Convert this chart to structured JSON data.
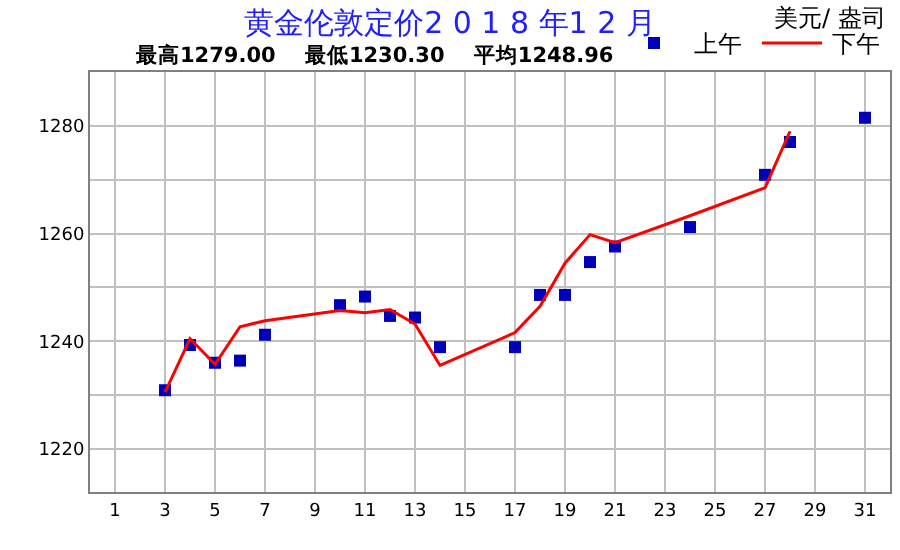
{
  "chart_data": {
    "type": "line",
    "title": "黄金伦敦定价2 0 1 8 年1 2 月",
    "subtitle": "最高1279.00    最低1230.30    平均1248.96",
    "ylabel": "美元/ 盎司",
    "xlim": [
      0,
      32
    ],
    "xticks": [
      1,
      3,
      5,
      7,
      9,
      11,
      13,
      15,
      17,
      19,
      21,
      23,
      25,
      27,
      29,
      31
    ],
    "ylim": [
      1212,
      1290
    ],
    "yticks": [
      1220,
      {
        "value": 1230,
        "label": null
      },
      1240,
      {
        "value": 1250,
        "label": null
      },
      1260,
      {
        "value": 1270,
        "label": null
      },
      1280
    ],
    "grid": true,
    "legend": "top right",
    "series": [
      {
        "name": "上午",
        "type": "scatter",
        "marker": "square",
        "color": "#0000bb",
        "x": [
          3,
          4,
          5,
          6,
          7,
          10,
          11,
          12,
          13,
          14,
          17,
          18,
          19,
          20,
          21,
          24,
          27,
          28,
          31
        ],
        "values": [
          1230.9,
          1239.3,
          1236.0,
          1236.4,
          1241.2,
          1246.7,
          1248.3,
          1244.7,
          1244.4,
          1238.9,
          1238.9,
          1248.6,
          1248.6,
          1254.7,
          1257.6,
          1261.2,
          1270.9,
          1277.0,
          1281.5
        ]
      },
      {
        "name": "下午",
        "marker": "none",
        "color": "#ff0000",
        "x": [
          3,
          4,
          5,
          6,
          7,
          10,
          11,
          12,
          13,
          14,
          17,
          18,
          19,
          20,
          21,
          24,
          27,
          28
        ],
        "values": [
          1230.5,
          1240.5,
          1235.7,
          1242.7,
          1243.8,
          1245.7,
          1245.3,
          1245.9,
          1243.2,
          1235.5,
          1241.6,
          1246.5,
          1254.5,
          1259.8,
          1258.3,
          1263.3,
          1268.5,
          1279.0
        ]
      }
    ]
  }
}
